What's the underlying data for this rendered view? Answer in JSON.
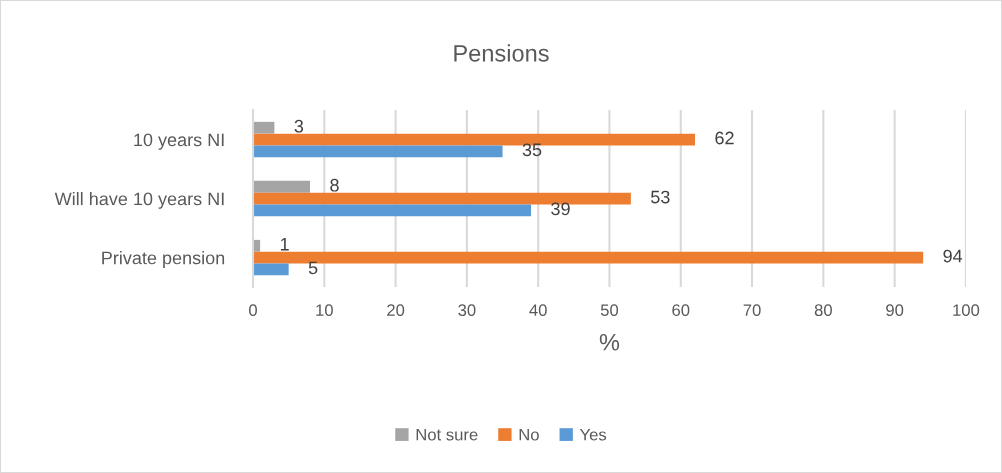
{
  "chart_data": {
    "type": "bar",
    "orientation": "horizontal",
    "title": "Pensions",
    "xlabel": "%",
    "categories": [
      "10 years NI",
      "Will have 10 years NI",
      "Private pension"
    ],
    "series": [
      {
        "name": "Not sure",
        "color": "#a5a5a5",
        "values": [
          3,
          8,
          1
        ]
      },
      {
        "name": "No",
        "color": "#ed7d31",
        "values": [
          62,
          53,
          94
        ]
      },
      {
        "name": "Yes",
        "color": "#5b9bd5",
        "values": [
          35,
          39,
          5
        ]
      }
    ],
    "xlim": [
      0,
      100
    ],
    "xticks": [
      0,
      10,
      20,
      30,
      40,
      50,
      60,
      70,
      80,
      90,
      100
    ],
    "grid": "x",
    "legend": "bottom",
    "data_labels": true
  }
}
